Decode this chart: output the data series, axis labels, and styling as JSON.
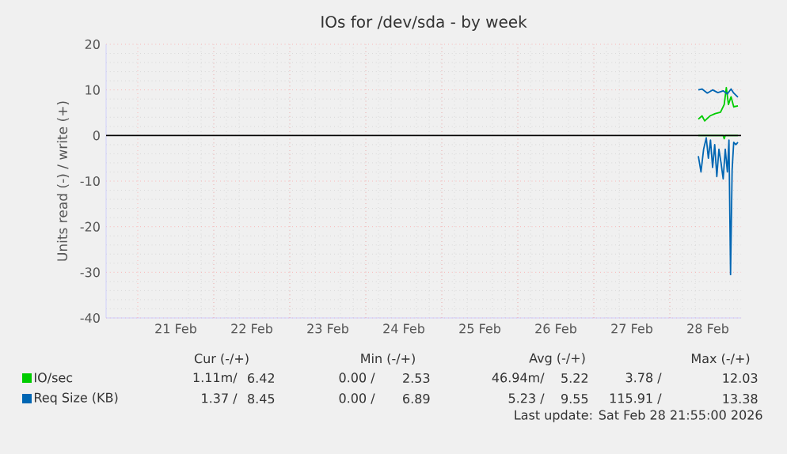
{
  "chart_data": {
    "type": "line",
    "title": "IOs for /dev/sda - by week",
    "ylabel": "Units read (-) / write (+)",
    "xlim": [
      "2026-02-20T14:00",
      "2026-02-28T22:30"
    ],
    "ylim": [
      -40,
      20
    ],
    "xticks": [
      {
        "value": "2026-02-21T00:00",
        "label": null
      },
      {
        "value": "2026-02-21T12:00",
        "label": "21 Feb"
      },
      {
        "value": "2026-02-22T00:00",
        "label": null
      },
      {
        "value": "2026-02-22T12:00",
        "label": "22 Feb"
      },
      {
        "value": "2026-02-23T00:00",
        "label": null
      },
      {
        "value": "2026-02-23T12:00",
        "label": "23 Feb"
      },
      {
        "value": "2026-02-24T00:00",
        "label": null
      },
      {
        "value": "2026-02-24T12:00",
        "label": "24 Feb"
      },
      {
        "value": "2026-02-25T00:00",
        "label": null
      },
      {
        "value": "2026-02-25T12:00",
        "label": "25 Feb"
      },
      {
        "value": "2026-02-26T00:00",
        "label": null
      },
      {
        "value": "2026-02-26T12:00",
        "label": "26 Feb"
      },
      {
        "value": "2026-02-27T00:00",
        "label": null
      },
      {
        "value": "2026-02-27T12:00",
        "label": "27 Feb"
      },
      {
        "value": "2026-02-28T00:00",
        "label": null
      },
      {
        "value": "2026-02-28T12:00",
        "label": "28 Feb"
      }
    ],
    "yticks": [
      -40,
      -30,
      -20,
      -10,
      0,
      10,
      20
    ],
    "grid": true,
    "legend": "bottom",
    "ref_lines": [
      {
        "axis": "y",
        "value": 0,
        "color": "#000000"
      }
    ],
    "series": [
      {
        "name": "IO/sec",
        "color": "#00cc00",
        "x": [
          "2026-02-28T09:00",
          "2026-02-28T10:10",
          "2026-02-28T11:00",
          "2026-02-28T12:40",
          "2026-02-28T14:20",
          "2026-02-28T16:00",
          "2026-02-28T17:10",
          "2026-02-28T17:50",
          "2026-02-28T18:30",
          "2026-02-28T19:20",
          "2026-02-28T20:10",
          "2026-02-28T21:30"
        ],
        "values": [
          3.6,
          4.3,
          3.2,
          4.3,
          4.8,
          5.1,
          6.8,
          10.5,
          6.8,
          8.5,
          6.3,
          6.5
        ]
      },
      {
        "color": "#00cc00",
        "x": [
          "2026-02-28T09:00",
          "2026-02-28T12:00",
          "2026-02-28T15:00",
          "2026-02-28T16:50",
          "2026-02-28T17:10",
          "2026-02-28T17:30",
          "2026-02-28T19:00",
          "2026-02-28T21:30"
        ],
        "values": [
          0,
          0,
          0,
          0,
          -0.7,
          0,
          0,
          0
        ]
      },
      {
        "name": "Req Size (KB)",
        "color": "#0066b3",
        "x": [
          "2026-02-28T09:00",
          "2026-02-28T10:10",
          "2026-02-28T11:50",
          "2026-02-28T13:30",
          "2026-02-28T15:10",
          "2026-02-28T16:50",
          "2026-02-28T18:10",
          "2026-02-28T18:40",
          "2026-02-28T19:20",
          "2026-02-28T20:10",
          "2026-02-28T21:30"
        ],
        "values": [
          10.0,
          10.2,
          9.3,
          10.0,
          9.4,
          9.8,
          9.1,
          9.6,
          10.2,
          9.3,
          8.4
        ]
      },
      {
        "color": "#0066b3",
        "x": [
          "2026-02-28T09:00",
          "2026-02-28T09:50",
          "2026-02-28T10:40",
          "2026-02-28T11:30",
          "2026-02-28T12:10",
          "2026-02-28T12:50",
          "2026-02-28T13:30",
          "2026-02-28T14:10",
          "2026-02-28T14:50",
          "2026-02-28T15:30",
          "2026-02-28T16:10",
          "2026-02-28T16:50",
          "2026-02-28T17:30",
          "2026-02-28T18:10",
          "2026-02-28T18:40",
          "2026-02-28T19:10",
          "2026-02-28T19:40",
          "2026-02-28T20:10",
          "2026-02-28T20:50",
          "2026-02-28T21:30"
        ],
        "values": [
          -4.5,
          -8,
          -3,
          -0.5,
          -5,
          -1,
          -7,
          -2,
          -9,
          -3,
          -6,
          -9.5,
          -3,
          -8,
          -1,
          -30.5,
          -7.5,
          -1.5,
          -2,
          -1.5
        ]
      }
    ],
    "annotations": [
      "Cur (-/+)",
      "Min (-/+)",
      "Avg (-/+)",
      "Max (-/+)",
      "1.11m/",
      "6.42",
      "0.00 /",
      "2.53",
      "46.94m/",
      "5.22",
      "3.78 /",
      "12.03",
      "1.37 /",
      "8.45",
      "0.00 /",
      "6.89",
      "5.23 /",
      "9.55",
      "115.91 /",
      "13.38",
      "Last update: Sat Feb 28 21:55:00 2026"
    ]
  }
}
